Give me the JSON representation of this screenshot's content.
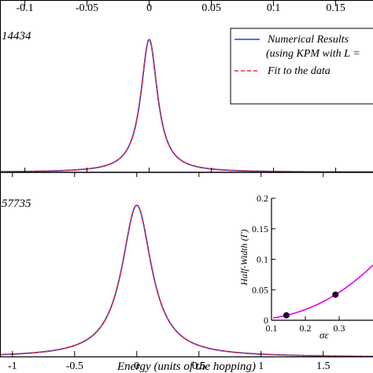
{
  "chart_data": [
    {
      "type": "line",
      "panel": "top",
      "title": "",
      "panel_label": "14434",
      "xlim": [
        -0.12,
        0.18
      ],
      "x_tick_labels": [
        "-0.1",
        "-0.05",
        "0",
        "0.05",
        "0.1",
        "0.15"
      ],
      "x_tick_values": [
        -0.1,
        -0.05,
        0,
        0.05,
        0.1,
        0.15
      ],
      "ylim": [
        0,
        1.0
      ],
      "lorentzian_width": 0.0081,
      "peak_height": 0.84,
      "legend": {
        "placement": "top-right",
        "entries": [
          {
            "label_line1": "Numerical Results",
            "label_line2": "(using KPM with L =",
            "color": "#1f3fff",
            "style": "solid"
          },
          {
            "label_line1": "Fit to the data",
            "label_line2": "",
            "color": "#e8322d",
            "style": "dashed"
          }
        ]
      },
      "series": [
        {
          "name": "Numerical Results",
          "color": "#1f3fff",
          "style": "solid"
        },
        {
          "name": "Fit to the data",
          "color": "#e8322d",
          "style": "dashed"
        }
      ]
    },
    {
      "type": "line",
      "panel": "bottom",
      "title": "",
      "panel_label": "57735",
      "xlabel": "Energy (units of the hopping)",
      "xlim": [
        -1.1,
        1.9
      ],
      "x_tick_labels": [
        "-1",
        "-0.5",
        "0",
        "0.5",
        "1",
        "1.5"
      ],
      "x_tick_values": [
        -1,
        -0.5,
        0,
        0.5,
        1,
        1.5
      ],
      "ylim": [
        0,
        1.0
      ],
      "lorentzian_width": 0.145,
      "peak_height": 0.87,
      "series": [
        {
          "name": "Numerical Results",
          "color": "#1f3fff",
          "style": "solid"
        },
        {
          "name": "Fit to the data",
          "color": "#e8322d",
          "style": "dashed"
        }
      ]
    },
    {
      "type": "scatter",
      "panel": "inset",
      "ylabel": "Half-Width (Γ)",
      "xlabel": "σε",
      "xlim": [
        0.1,
        0.4
      ],
      "ylim": [
        0,
        0.2
      ],
      "x_tick_labels": [
        "0.1",
        "0.2",
        "0.3"
      ],
      "x_tick_values": [
        0.1,
        0.2,
        0.3
      ],
      "y_tick_labels": [
        "0",
        "0.05",
        "0.1",
        "0.15",
        "0.2"
      ],
      "y_tick_values": [
        0,
        0.05,
        0.1,
        0.15,
        0.2
      ],
      "points": [
        {
          "x": 0.144,
          "y": 0.0081
        },
        {
          "x": 0.289,
          "y": 0.042
        }
      ],
      "fit_curve_color": "#e800e8",
      "point_color": "#200040"
    }
  ]
}
